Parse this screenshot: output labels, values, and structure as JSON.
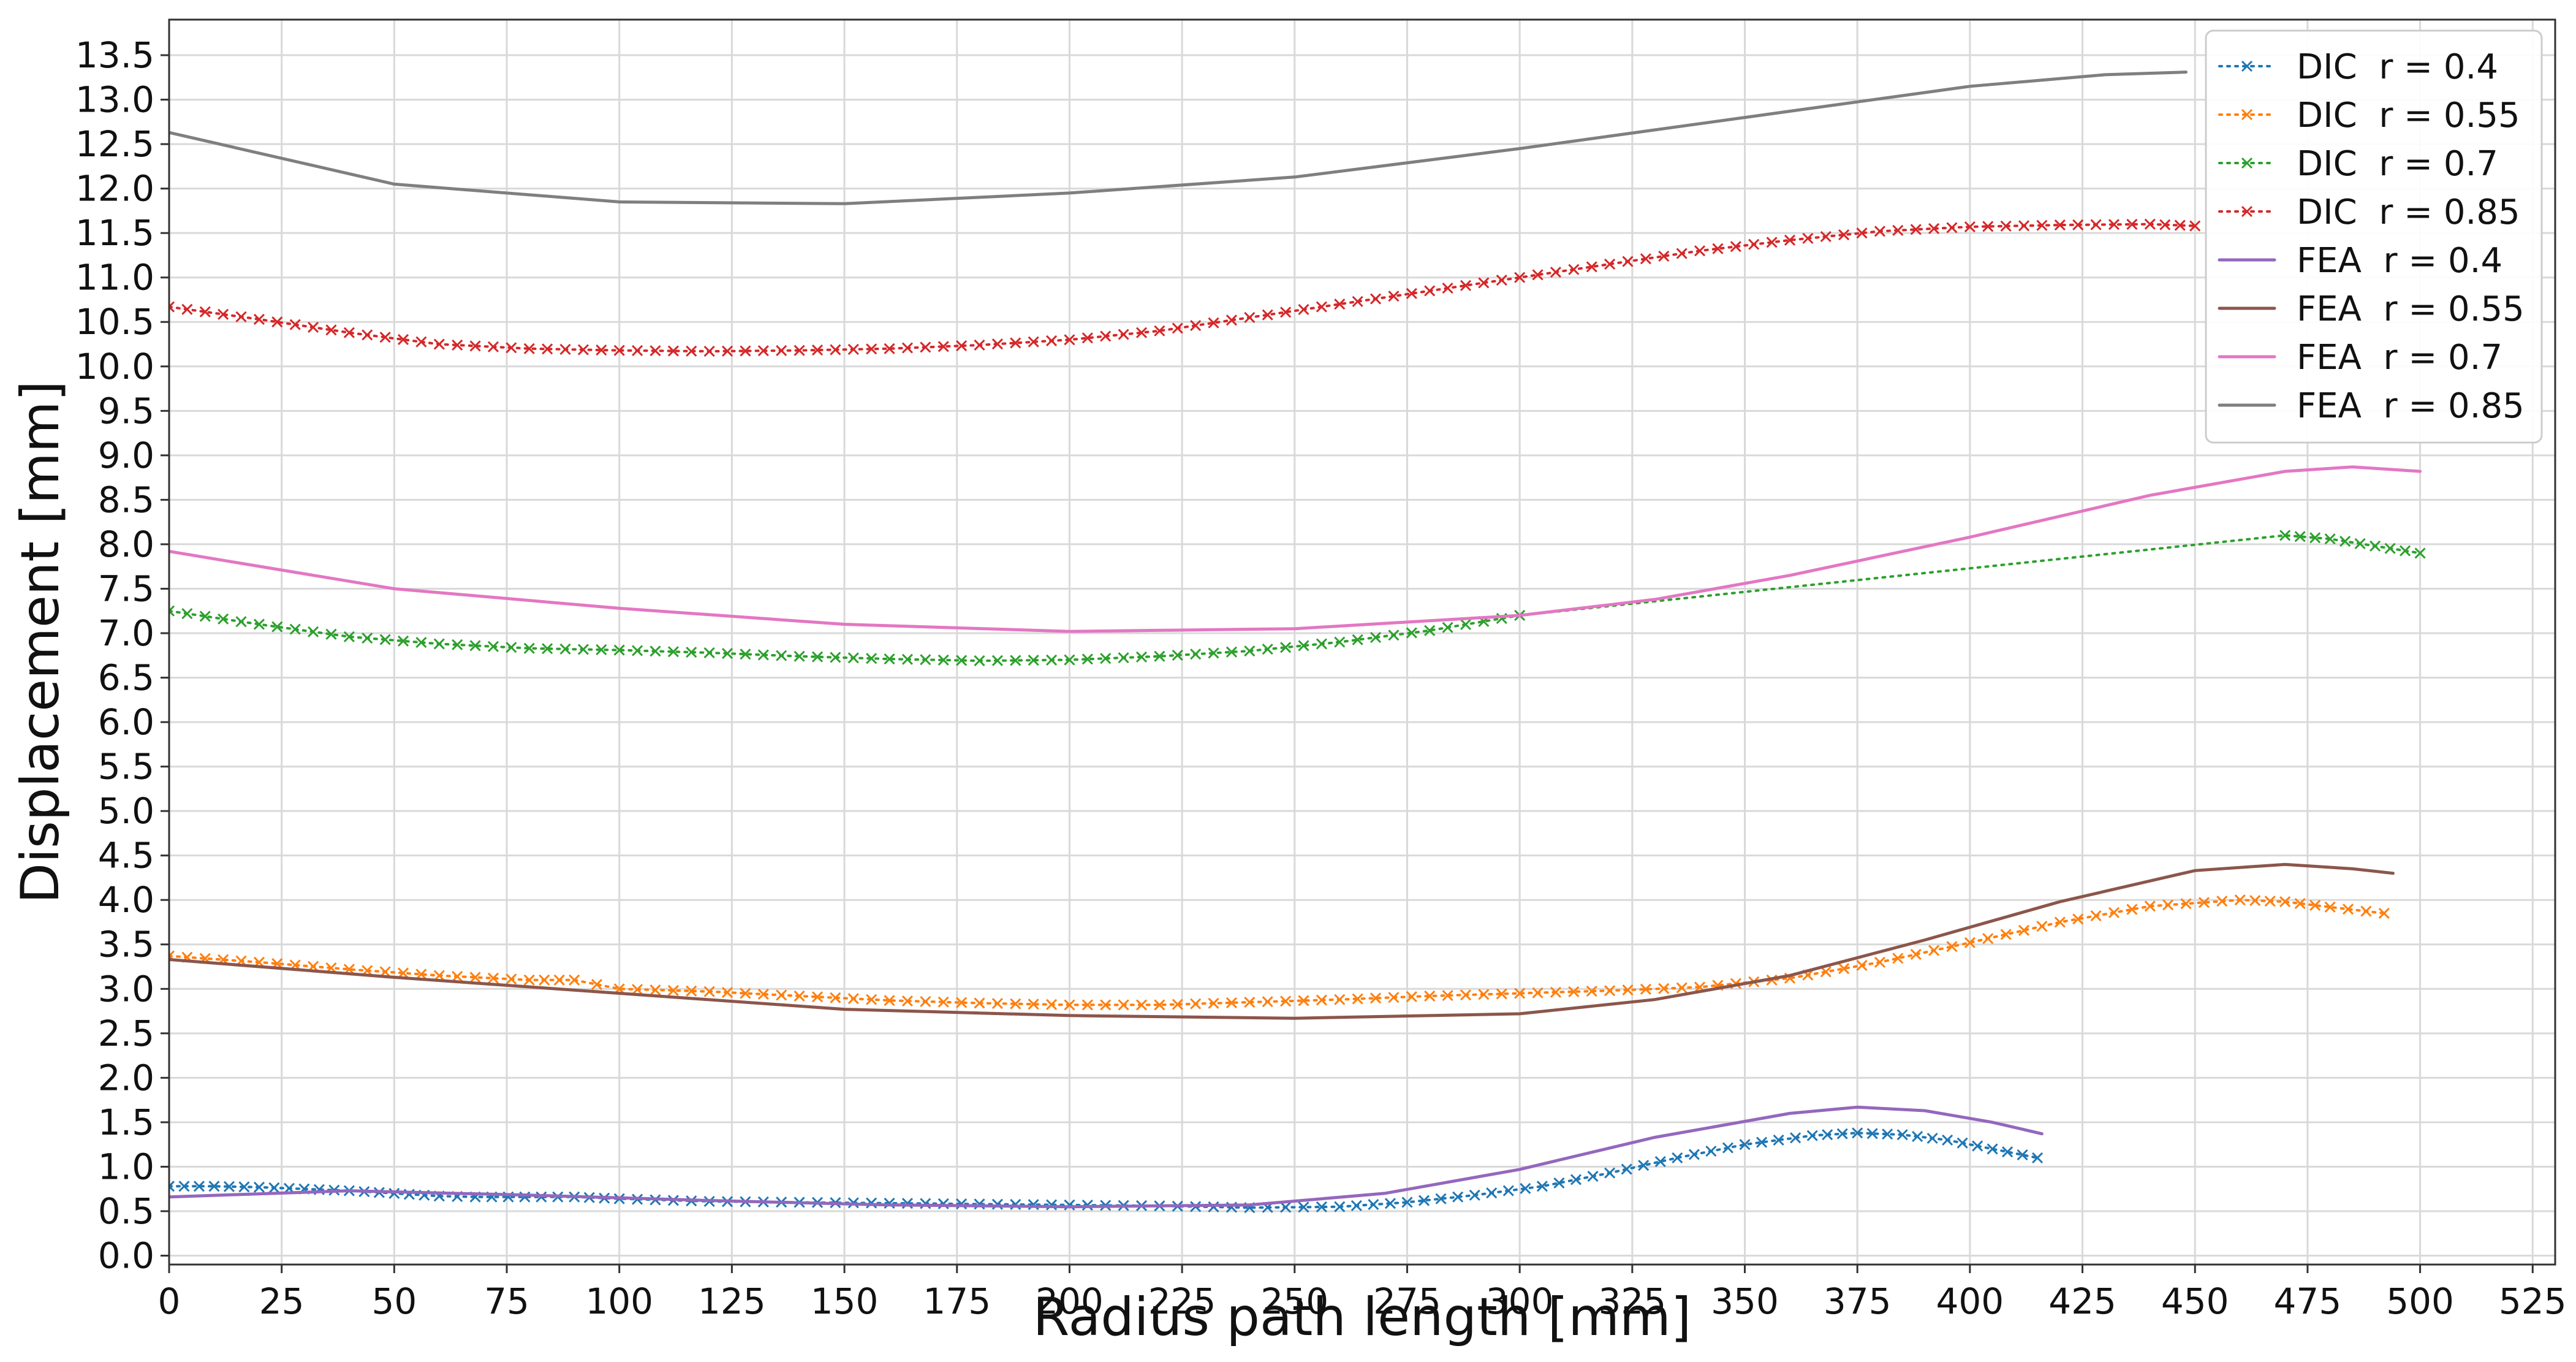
{
  "chart_data": {
    "type": "line",
    "xlabel": "Radius path length [mm]",
    "ylabel": "Displacement [mm]",
    "xlim": [
      0,
      530
    ],
    "ylim": [
      -0.1,
      13.9
    ],
    "xticks": [
      0,
      25,
      50,
      75,
      100,
      125,
      150,
      175,
      200,
      225,
      250,
      275,
      300,
      325,
      350,
      375,
      400,
      425,
      450,
      475,
      500,
      525
    ],
    "yticks": [
      0.0,
      0.5,
      1.0,
      1.5,
      2.0,
      2.5,
      3.0,
      3.5,
      4.0,
      4.5,
      5.0,
      5.5,
      6.0,
      6.5,
      7.0,
      7.5,
      8.0,
      8.5,
      9.0,
      9.5,
      10.0,
      10.5,
      11.0,
      11.5,
      12.0,
      12.5,
      13.0,
      13.5
    ],
    "grid": true,
    "legend_position": "top-right",
    "series": [
      {
        "name": "DIC  r = 0.4",
        "kind": "DIC",
        "color": "#1f77b4",
        "marker": "x",
        "linestyle": "dotted",
        "points": [
          [
            0,
            0.78
          ],
          [
            10,
            0.78
          ],
          [
            20,
            0.77
          ],
          [
            30,
            0.75
          ],
          [
            40,
            0.73
          ],
          [
            50,
            0.7
          ],
          [
            60,
            0.67
          ],
          [
            68,
            0.66
          ],
          [
            90,
            0.66
          ],
          [
            100,
            0.64
          ],
          [
            120,
            0.61
          ],
          [
            140,
            0.6
          ],
          [
            160,
            0.59
          ],
          [
            180,
            0.58
          ],
          [
            200,
            0.57
          ],
          [
            220,
            0.56
          ],
          [
            240,
            0.54
          ],
          [
            260,
            0.55
          ],
          [
            275,
            0.6
          ],
          [
            290,
            0.68
          ],
          [
            305,
            0.78
          ],
          [
            320,
            0.93
          ],
          [
            335,
            1.1
          ],
          [
            350,
            1.25
          ],
          [
            365,
            1.35
          ],
          [
            375,
            1.38
          ],
          [
            385,
            1.36
          ],
          [
            395,
            1.3
          ],
          [
            405,
            1.2
          ],
          [
            415,
            1.1
          ]
        ]
      },
      {
        "name": "DIC  r = 0.55",
        "kind": "DIC",
        "color": "#ff7f0e",
        "marker": "x",
        "linestyle": "dotted",
        "points": [
          [
            0,
            3.37
          ],
          [
            20,
            3.3
          ],
          [
            40,
            3.22
          ],
          [
            60,
            3.15
          ],
          [
            80,
            3.1
          ],
          [
            90,
            3.1
          ],
          [
            95,
            3.05
          ],
          [
            100,
            3.0
          ],
          [
            120,
            2.97
          ],
          [
            140,
            2.92
          ],
          [
            160,
            2.87
          ],
          [
            180,
            2.84
          ],
          [
            200,
            2.82
          ],
          [
            220,
            2.82
          ],
          [
            240,
            2.85
          ],
          [
            260,
            2.88
          ],
          [
            280,
            2.92
          ],
          [
            300,
            2.95
          ],
          [
            320,
            2.98
          ],
          [
            340,
            3.02
          ],
          [
            360,
            3.12
          ],
          [
            380,
            3.3
          ],
          [
            400,
            3.52
          ],
          [
            420,
            3.75
          ],
          [
            440,
            3.93
          ],
          [
            460,
            4.0
          ],
          [
            470,
            3.98
          ],
          [
            480,
            3.92
          ],
          [
            492,
            3.85
          ]
        ]
      },
      {
        "name": "DIC  r = 0.7",
        "kind": "DIC",
        "color": "#2ca02c",
        "marker": "x",
        "linestyle": "dotted",
        "points": [
          [
            0,
            7.25
          ],
          [
            20,
            7.1
          ],
          [
            40,
            6.96
          ],
          [
            60,
            6.88
          ],
          [
            80,
            6.83
          ],
          [
            100,
            6.81
          ],
          [
            120,
            6.78
          ],
          [
            140,
            6.74
          ],
          [
            160,
            6.71
          ],
          [
            180,
            6.69
          ],
          [
            200,
            6.7
          ],
          [
            220,
            6.74
          ],
          [
            240,
            6.8
          ],
          [
            260,
            6.9
          ],
          [
            280,
            7.03
          ],
          [
            300,
            7.2
          ],
          [
            470,
            8.1
          ],
          [
            480,
            8.06
          ],
          [
            490,
            7.98
          ],
          [
            500,
            7.9
          ]
        ]
      },
      {
        "name": "DIC  r = 0.85",
        "kind": "DIC",
        "color": "#d62728",
        "marker": "x",
        "linestyle": "dotted",
        "points": [
          [
            0,
            10.67
          ],
          [
            20,
            10.53
          ],
          [
            40,
            10.38
          ],
          [
            60,
            10.25
          ],
          [
            80,
            10.2
          ],
          [
            100,
            10.18
          ],
          [
            120,
            10.17
          ],
          [
            140,
            10.18
          ],
          [
            160,
            10.2
          ],
          [
            180,
            10.24
          ],
          [
            200,
            10.3
          ],
          [
            220,
            10.4
          ],
          [
            240,
            10.55
          ],
          [
            260,
            10.7
          ],
          [
            280,
            10.85
          ],
          [
            300,
            11.0
          ],
          [
            320,
            11.15
          ],
          [
            340,
            11.3
          ],
          [
            360,
            11.42
          ],
          [
            380,
            11.52
          ],
          [
            400,
            11.57
          ],
          [
            420,
            11.59
          ],
          [
            440,
            11.6
          ],
          [
            450,
            11.58
          ]
        ]
      },
      {
        "name": "FEA  r = 0.4",
        "kind": "FEA",
        "color": "#9467bd",
        "linestyle": "solid",
        "points": [
          [
            0,
            0.66
          ],
          [
            40,
            0.73
          ],
          [
            80,
            0.68
          ],
          [
            120,
            0.62
          ],
          [
            160,
            0.57
          ],
          [
            200,
            0.55
          ],
          [
            240,
            0.57
          ],
          [
            270,
            0.7
          ],
          [
            300,
            0.97
          ],
          [
            330,
            1.33
          ],
          [
            360,
            1.6
          ],
          [
            375,
            1.67
          ],
          [
            390,
            1.63
          ],
          [
            405,
            1.5
          ],
          [
            416,
            1.37
          ]
        ]
      },
      {
        "name": "FEA  r = 0.55",
        "kind": "FEA",
        "color": "#8c564b",
        "linestyle": "solid",
        "points": [
          [
            0,
            3.33
          ],
          [
            50,
            3.13
          ],
          [
            100,
            2.95
          ],
          [
            150,
            2.77
          ],
          [
            200,
            2.7
          ],
          [
            250,
            2.67
          ],
          [
            300,
            2.72
          ],
          [
            330,
            2.88
          ],
          [
            360,
            3.15
          ],
          [
            390,
            3.55
          ],
          [
            420,
            3.98
          ],
          [
            450,
            4.33
          ],
          [
            470,
            4.4
          ],
          [
            485,
            4.35
          ],
          [
            494,
            4.3
          ]
        ]
      },
      {
        "name": "FEA  r = 0.7",
        "kind": "FEA",
        "color": "#e377c2",
        "linestyle": "solid",
        "points": [
          [
            0,
            7.92
          ],
          [
            50,
            7.5
          ],
          [
            100,
            7.28
          ],
          [
            150,
            7.1
          ],
          [
            200,
            7.02
          ],
          [
            250,
            7.05
          ],
          [
            300,
            7.2
          ],
          [
            330,
            7.38
          ],
          [
            360,
            7.65
          ],
          [
            400,
            8.08
          ],
          [
            440,
            8.55
          ],
          [
            470,
            8.82
          ],
          [
            485,
            8.87
          ],
          [
            500,
            8.82
          ]
        ]
      },
      {
        "name": "FEA  r = 0.85",
        "kind": "FEA",
        "color": "#7f7f7f",
        "linestyle": "solid",
        "points": [
          [
            0,
            12.63
          ],
          [
            50,
            12.05
          ],
          [
            100,
            11.85
          ],
          [
            150,
            11.83
          ],
          [
            200,
            11.95
          ],
          [
            250,
            12.13
          ],
          [
            300,
            12.45
          ],
          [
            350,
            12.8
          ],
          [
            400,
            13.15
          ],
          [
            430,
            13.28
          ],
          [
            448,
            13.31
          ]
        ]
      }
    ]
  }
}
